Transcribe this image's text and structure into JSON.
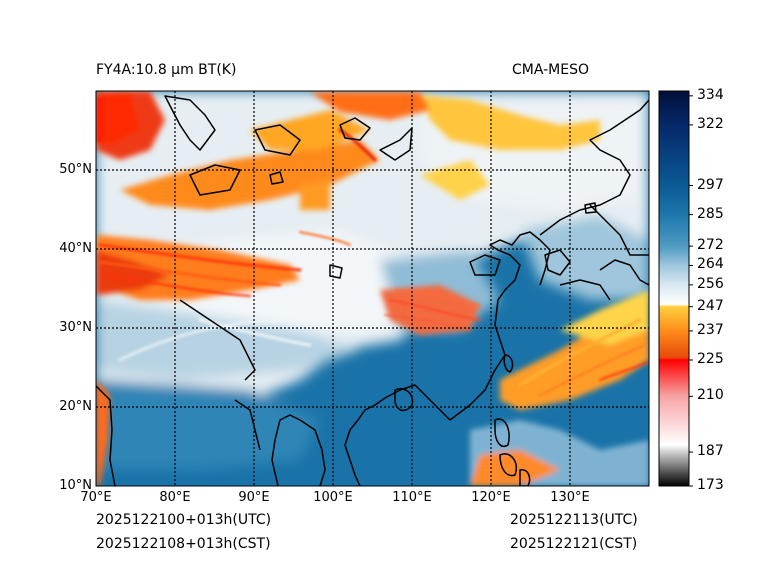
{
  "header": {
    "product": "FY4A:10.8 µm BT(K)",
    "source": "CMA-MESO"
  },
  "footer": {
    "init_utc": "2025122100+013h(UTC)",
    "init_cst": "2025122108+013h(CST)",
    "valid_utc": "2025122113(UTC)",
    "valid_cst": "2025122121(CST)"
  },
  "map": {
    "lon_range": [
      70,
      140
    ],
    "lat_range": [
      10,
      60
    ],
    "lon_ticks": [
      {
        "value": 70,
        "label": "70°E"
      },
      {
        "value": 80,
        "label": "80°E"
      },
      {
        "value": 90,
        "label": "90°E"
      },
      {
        "value": 100,
        "label": "100°E"
      },
      {
        "value": 110,
        "label": "110°E"
      },
      {
        "value": 120,
        "label": "120°E"
      },
      {
        "value": 130,
        "label": "130°E"
      }
    ],
    "lat_ticks": [
      {
        "value": 10,
        "label": "10°N"
      },
      {
        "value": 20,
        "label": "20°N"
      },
      {
        "value": 30,
        "label": "30°N"
      },
      {
        "value": 40,
        "label": "40°N"
      },
      {
        "value": 50,
        "label": "50°N"
      }
    ]
  },
  "colorbar": {
    "range": [
      173,
      336
    ],
    "ticks": [
      173,
      187,
      210,
      225,
      237,
      247,
      256,
      264,
      272,
      285,
      297,
      322,
      334
    ],
    "stops": [
      {
        "v": 173,
        "c": "#000000"
      },
      {
        "v": 187,
        "c": "#cfcfcf"
      },
      {
        "v": 190,
        "c": "#ffffff"
      },
      {
        "v": 210,
        "c": "#f7a4a4"
      },
      {
        "v": 225,
        "c": "#ff0000"
      },
      {
        "v": 226,
        "c": "#e84a0a"
      },
      {
        "v": 237,
        "c": "#ff8c1a"
      },
      {
        "v": 247,
        "c": "#ffd040"
      },
      {
        "v": 248,
        "c": "#ffffff"
      },
      {
        "v": 256,
        "c": "#d8e8f2"
      },
      {
        "v": 264,
        "c": "#9ec6dc"
      },
      {
        "v": 272,
        "c": "#4e9ac2"
      },
      {
        "v": 285,
        "c": "#1c78ac"
      },
      {
        "v": 297,
        "c": "#0a5a94"
      },
      {
        "v": 322,
        "c": "#06286a"
      },
      {
        "v": 336,
        "c": "#020f3a"
      }
    ]
  }
}
